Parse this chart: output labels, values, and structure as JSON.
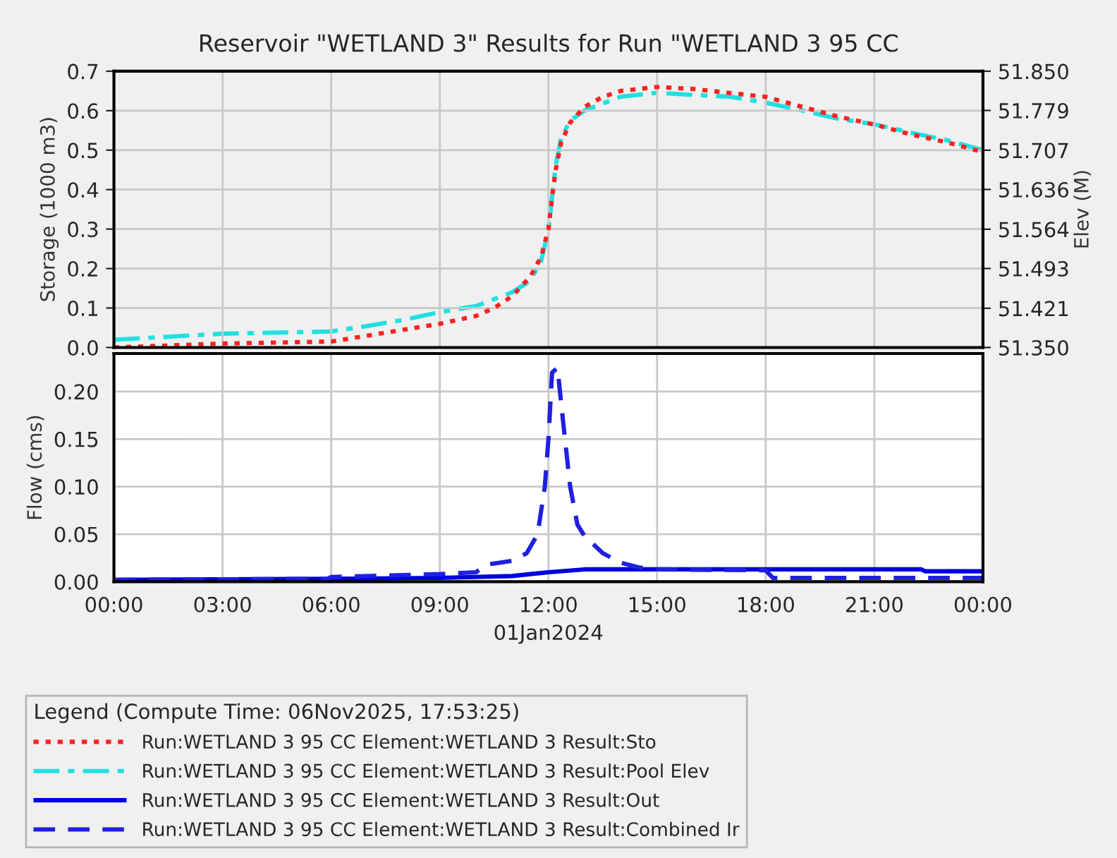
{
  "chart_data": [
    {
      "type": "line",
      "title": "Reservoir \"WETLAND 3\" Results for Run \"WETLAND 3 95 CC",
      "ylabel": "Storage (1000 m3)",
      "y2label": "Elev (M)",
      "xlim": [
        0,
        24
      ],
      "xticks": [
        {
          "value": 0,
          "label": null
        },
        {
          "value": 3,
          "label": null
        },
        {
          "value": 6,
          "label": null
        },
        {
          "value": 9,
          "label": null
        },
        {
          "value": 12,
          "label": null
        },
        {
          "value": 15,
          "label": null
        },
        {
          "value": 18,
          "label": null
        },
        {
          "value": 21,
          "label": null
        },
        {
          "value": 24,
          "label": null
        }
      ],
      "ylim": [
        0,
        0.7
      ],
      "yticks": [
        {
          "value": 0,
          "label": "0.0"
        },
        {
          "value": 0.1,
          "label": "0.1"
        },
        {
          "value": 0.2,
          "label": "0.2"
        },
        {
          "value": 0.3,
          "label": "0.3"
        },
        {
          "value": 0.4,
          "label": "0.4"
        },
        {
          "value": 0.5,
          "label": "0.5"
        },
        {
          "value": 0.6,
          "label": "0.6"
        },
        {
          "value": 0.7,
          "label": "0.7"
        }
      ],
      "y2lim": [
        51.35,
        51.85
      ],
      "y2ticks": [
        {
          "value": 51.35,
          "label": "51.350"
        },
        {
          "value": 51.421,
          "label": "51.421"
        },
        {
          "value": 51.493,
          "label": "51.493"
        },
        {
          "value": 51.564,
          "label": "51.564"
        },
        {
          "value": 51.636,
          "label": "51.636"
        },
        {
          "value": 51.707,
          "label": "51.707"
        },
        {
          "value": 51.779,
          "label": "51.779"
        },
        {
          "value": 51.85,
          "label": "51.850"
        }
      ],
      "grid": true,
      "legend": "bottom",
      "tick_labels": "y",
      "series": [
        {
          "name": "Run:WETLAND 3 95 CC Element:WETLAND 3 Result:Sto",
          "color": "#ff2020",
          "line_style": "dotted",
          "x": [
            0,
            3,
            6,
            7,
            8,
            9,
            10,
            10.5,
            11,
            11.5,
            11.8,
            12,
            12.1,
            12.2,
            12.35,
            12.6,
            13,
            13.5,
            14,
            15,
            16,
            17,
            18,
            19,
            20,
            21,
            22,
            23,
            24
          ],
          "values": [
            0.0,
            0.01,
            0.015,
            0.03,
            0.045,
            0.06,
            0.08,
            0.1,
            0.13,
            0.18,
            0.23,
            0.3,
            0.38,
            0.45,
            0.52,
            0.57,
            0.61,
            0.635,
            0.65,
            0.66,
            0.655,
            0.645,
            0.635,
            0.61,
            0.585,
            0.565,
            0.54,
            0.52,
            0.495
          ]
        },
        {
          "name": "Run:WETLAND 3 95 CC Element:WETLAND 3 Result:Pool Elev",
          "color": "#20e0e0",
          "line_style": "dashdot",
          "axis": "y2",
          "x": [
            0,
            3,
            6,
            7,
            8,
            9,
            10,
            11,
            11.5,
            11.8,
            12,
            12.1,
            12.2,
            12.35,
            12.6,
            13,
            14,
            15,
            16,
            17,
            18,
            19,
            20,
            21,
            22,
            23,
            24
          ],
          "values": [
            51.364,
            51.375,
            51.379,
            51.389,
            51.4,
            51.414,
            51.425,
            51.45,
            51.471,
            51.507,
            51.564,
            51.621,
            51.679,
            51.729,
            51.761,
            51.779,
            51.804,
            51.811,
            51.807,
            51.804,
            51.793,
            51.779,
            51.764,
            51.754,
            51.739,
            51.725,
            51.707
          ]
        }
      ]
    },
    {
      "type": "line",
      "ylabel": "Flow (cms)",
      "xlabel": "01Jan2024",
      "legend_title": "Legend (Compute Time: 06Nov2025, 17:53:25)",
      "xlim": [
        0,
        24
      ],
      "xticks": [
        {
          "value": 0,
          "label": "00:00"
        },
        {
          "value": 3,
          "label": "03:00"
        },
        {
          "value": 6,
          "label": "06:00"
        },
        {
          "value": 9,
          "label": "09:00"
        },
        {
          "value": 12,
          "label": "12:00"
        },
        {
          "value": 15,
          "label": "15:00"
        },
        {
          "value": 18,
          "label": "18:00"
        },
        {
          "value": 21,
          "label": "21:00"
        },
        {
          "value": 24,
          "label": "00:00"
        }
      ],
      "ylim": [
        0,
        0.24
      ],
      "yticks": [
        {
          "value": 0,
          "label": "0.00"
        },
        {
          "value": 0.05,
          "label": "0.05"
        },
        {
          "value": 0.1,
          "label": "0.10"
        },
        {
          "value": 0.15,
          "label": "0.15"
        },
        {
          "value": 0.2,
          "label": "0.20"
        }
      ],
      "grid": true,
      "legend": "bottom",
      "series": [
        {
          "name": "Run:WETLAND 3 95 CC Element:WETLAND 3 Result:Out",
          "color": "#0000e0",
          "line_style": "solid",
          "x": [
            0,
            6,
            9,
            11,
            12,
            13,
            15,
            18,
            22.3,
            22.4,
            24
          ],
          "values": [
            0.002,
            0.003,
            0.004,
            0.006,
            0.01,
            0.013,
            0.013,
            0.013,
            0.013,
            0.011,
            0.011
          ]
        },
        {
          "name": "Run:WETLAND 3 95 CC Element:WETLAND 3 Result:Combined Ir",
          "color": "#2020e0",
          "line_style": "dashed",
          "x": [
            0,
            5.9,
            6,
            9,
            10,
            10.3,
            11,
            11.4,
            11.7,
            11.9,
            12,
            12.1,
            12.25,
            12.4,
            12.6,
            12.8,
            13,
            13.5,
            14,
            14.5,
            15,
            18,
            18.2,
            24
          ],
          "values": [
            0.002,
            0.003,
            0.005,
            0.008,
            0.01,
            0.018,
            0.022,
            0.03,
            0.05,
            0.1,
            0.15,
            0.22,
            0.225,
            0.17,
            0.1,
            0.06,
            0.048,
            0.03,
            0.02,
            0.015,
            0.013,
            0.012,
            0.004,
            0.004
          ]
        }
      ]
    }
  ]
}
